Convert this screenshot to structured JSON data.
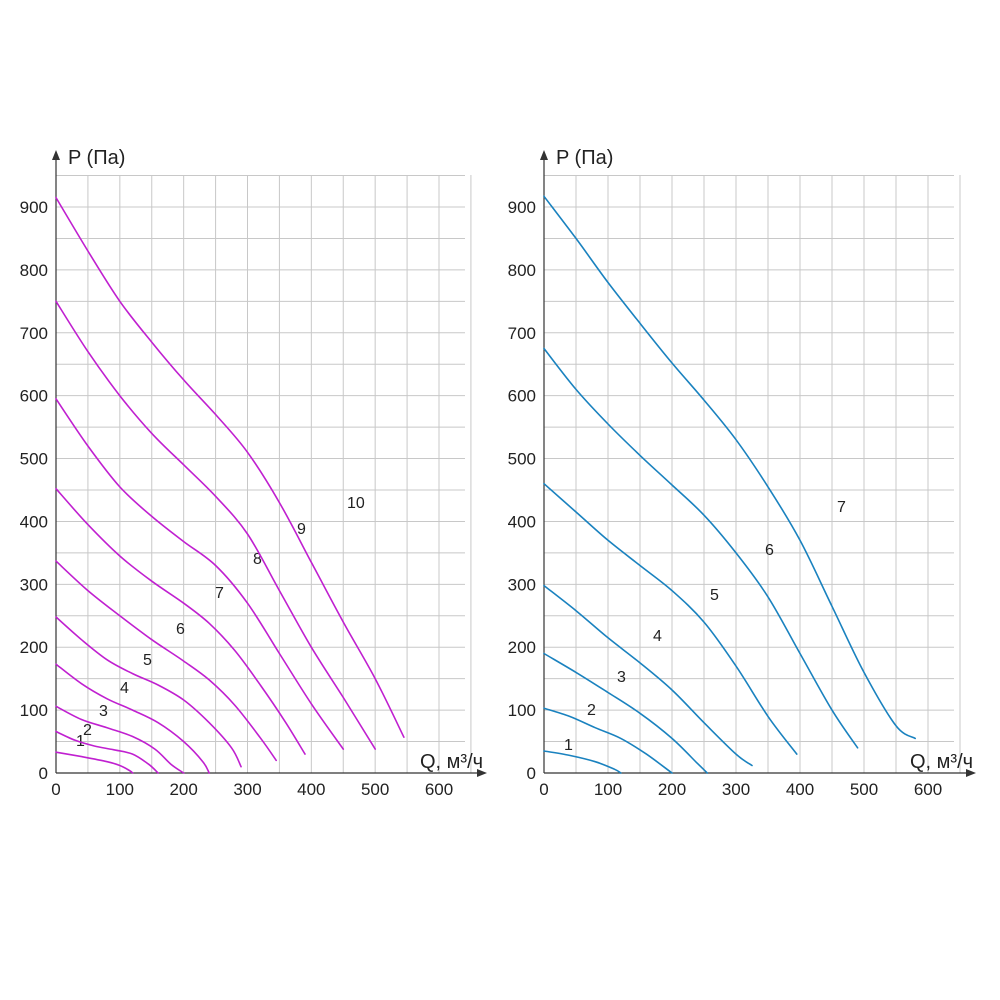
{
  "chart_data": [
    {
      "type": "line",
      "x_ticks": [
        "0",
        "100",
        "200",
        "300",
        "400",
        "500",
        "600"
      ],
      "y_ticks": [
        "0",
        "100",
        "200",
        "300",
        "400",
        "500",
        "600",
        "700",
        "800",
        "900"
      ],
      "xlabel": "Q, м³/ч",
      "ylabel": "P (Па)",
      "xlim": [
        0,
        650
      ],
      "ylim": [
        0,
        950
      ],
      "grid": true,
      "color": "#c020d0",
      "series": [
        {
          "name": "1",
          "points": [
            [
              0,
              33
            ],
            [
              40,
              26
            ],
            [
              80,
              18
            ],
            [
              100,
              12
            ],
            [
              115,
              4
            ],
            [
              120,
              0
            ]
          ]
        },
        {
          "name": "2",
          "points": [
            [
              0,
              66
            ],
            [
              30,
              52
            ],
            [
              60,
              43
            ],
            [
              90,
              37
            ],
            [
              120,
              30
            ],
            [
              145,
              14
            ],
            [
              160,
              0
            ]
          ]
        },
        {
          "name": "3",
          "points": [
            [
              0,
              106
            ],
            [
              40,
              85
            ],
            [
              80,
              72
            ],
            [
              120,
              58
            ],
            [
              155,
              38
            ],
            [
              180,
              14
            ],
            [
              200,
              0
            ]
          ]
        },
        {
          "name": "4",
          "points": [
            [
              0,
              173
            ],
            [
              40,
              142
            ],
            [
              80,
              118
            ],
            [
              120,
              100
            ],
            [
              160,
              80
            ],
            [
              200,
              50
            ],
            [
              230,
              18
            ],
            [
              240,
              0
            ]
          ]
        },
        {
          "name": "5",
          "points": [
            [
              0,
              248
            ],
            [
              40,
              212
            ],
            [
              80,
              180
            ],
            [
              120,
              158
            ],
            [
              160,
              140
            ],
            [
              200,
              116
            ],
            [
              240,
              80
            ],
            [
              275,
              40
            ],
            [
              290,
              10
            ]
          ]
        },
        {
          "name": "6",
          "points": [
            [
              0,
              337
            ],
            [
              50,
              290
            ],
            [
              100,
              250
            ],
            [
              150,
              212
            ],
            [
              200,
              178
            ],
            [
              240,
              148
            ],
            [
              280,
              108
            ],
            [
              320,
              56
            ],
            [
              345,
              20
            ]
          ]
        },
        {
          "name": "7",
          "points": [
            [
              0,
              452
            ],
            [
              50,
              395
            ],
            [
              100,
              345
            ],
            [
              150,
              305
            ],
            [
              200,
              270
            ],
            [
              240,
              238
            ],
            [
              280,
              195
            ],
            [
              320,
              140
            ],
            [
              360,
              80
            ],
            [
              390,
              30
            ]
          ]
        },
        {
          "name": "8",
          "points": [
            [
              0,
              595
            ],
            [
              50,
              520
            ],
            [
              100,
              455
            ],
            [
              150,
              408
            ],
            [
              200,
              368
            ],
            [
              250,
              330
            ],
            [
              300,
              270
            ],
            [
              350,
              190
            ],
            [
              400,
              110
            ],
            [
              450,
              38
            ]
          ]
        },
        {
          "name": "9",
          "points": [
            [
              0,
              750
            ],
            [
              50,
              670
            ],
            [
              100,
              600
            ],
            [
              150,
              540
            ],
            [
              200,
              490
            ],
            [
              250,
              440
            ],
            [
              300,
              380
            ],
            [
              350,
              290
            ],
            [
              400,
              200
            ],
            [
              450,
              120
            ],
            [
              500,
              38
            ]
          ]
        },
        {
          "name": "10",
          "points": [
            [
              0,
              915
            ],
            [
              50,
              830
            ],
            [
              100,
              750
            ],
            [
              150,
              685
            ],
            [
              200,
              625
            ],
            [
              250,
              570
            ],
            [
              300,
              510
            ],
            [
              350,
              430
            ],
            [
              400,
              335
            ],
            [
              450,
              240
            ],
            [
              500,
              150
            ],
            [
              545,
              57
            ]
          ]
        }
      ]
    },
    {
      "type": "line",
      "x_ticks": [
        "0",
        "100",
        "200",
        "300",
        "400",
        "500",
        "600"
      ],
      "y_ticks": [
        "0",
        "100",
        "200",
        "300",
        "400",
        "500",
        "600",
        "700",
        "800",
        "900"
      ],
      "xlabel": "Q, м³/ч",
      "ylabel": "P (Па)",
      "xlim": [
        0,
        650
      ],
      "ylim": [
        0,
        950
      ],
      "grid": true,
      "color": "#1a82bf",
      "series": [
        {
          "name": "1",
          "points": [
            [
              0,
              35
            ],
            [
              40,
              28
            ],
            [
              80,
              18
            ],
            [
              110,
              6
            ],
            [
              120,
              0
            ]
          ]
        },
        {
          "name": "2",
          "points": [
            [
              0,
              103
            ],
            [
              40,
              90
            ],
            [
              80,
              72
            ],
            [
              120,
              55
            ],
            [
              160,
              30
            ],
            [
              200,
              0
            ]
          ]
        },
        {
          "name": "3",
          "points": [
            [
              0,
              190
            ],
            [
              50,
              160
            ],
            [
              100,
              128
            ],
            [
              150,
              95
            ],
            [
              200,
              55
            ],
            [
              240,
              15
            ],
            [
              255,
              0
            ]
          ]
        },
        {
          "name": "4",
          "points": [
            [
              0,
              298
            ],
            [
              50,
              258
            ],
            [
              100,
              215
            ],
            [
              150,
              175
            ],
            [
              200,
              132
            ],
            [
              250,
              80
            ],
            [
              300,
              30
            ],
            [
              325,
              12
            ]
          ]
        },
        {
          "name": "5",
          "points": [
            [
              0,
              460
            ],
            [
              50,
              415
            ],
            [
              100,
              370
            ],
            [
              150,
              330
            ],
            [
              200,
              290
            ],
            [
              250,
              240
            ],
            [
              300,
              170
            ],
            [
              350,
              90
            ],
            [
              395,
              30
            ]
          ]
        },
        {
          "name": "6",
          "points": [
            [
              0,
              675
            ],
            [
              50,
              610
            ],
            [
              100,
              555
            ],
            [
              150,
              505
            ],
            [
              200,
              458
            ],
            [
              250,
              410
            ],
            [
              300,
              350
            ],
            [
              350,
              280
            ],
            [
              400,
              190
            ],
            [
              450,
              100
            ],
            [
              490,
              40
            ]
          ]
        },
        {
          "name": "7",
          "points": [
            [
              0,
              917
            ],
            [
              50,
              850
            ],
            [
              100,
              780
            ],
            [
              150,
              715
            ],
            [
              200,
              652
            ],
            [
              250,
              593
            ],
            [
              300,
              530
            ],
            [
              350,
              455
            ],
            [
              400,
              370
            ],
            [
              450,
              265
            ],
            [
              500,
              160
            ],
            [
              550,
              75
            ],
            [
              580,
              55
            ]
          ]
        }
      ]
    }
  ]
}
